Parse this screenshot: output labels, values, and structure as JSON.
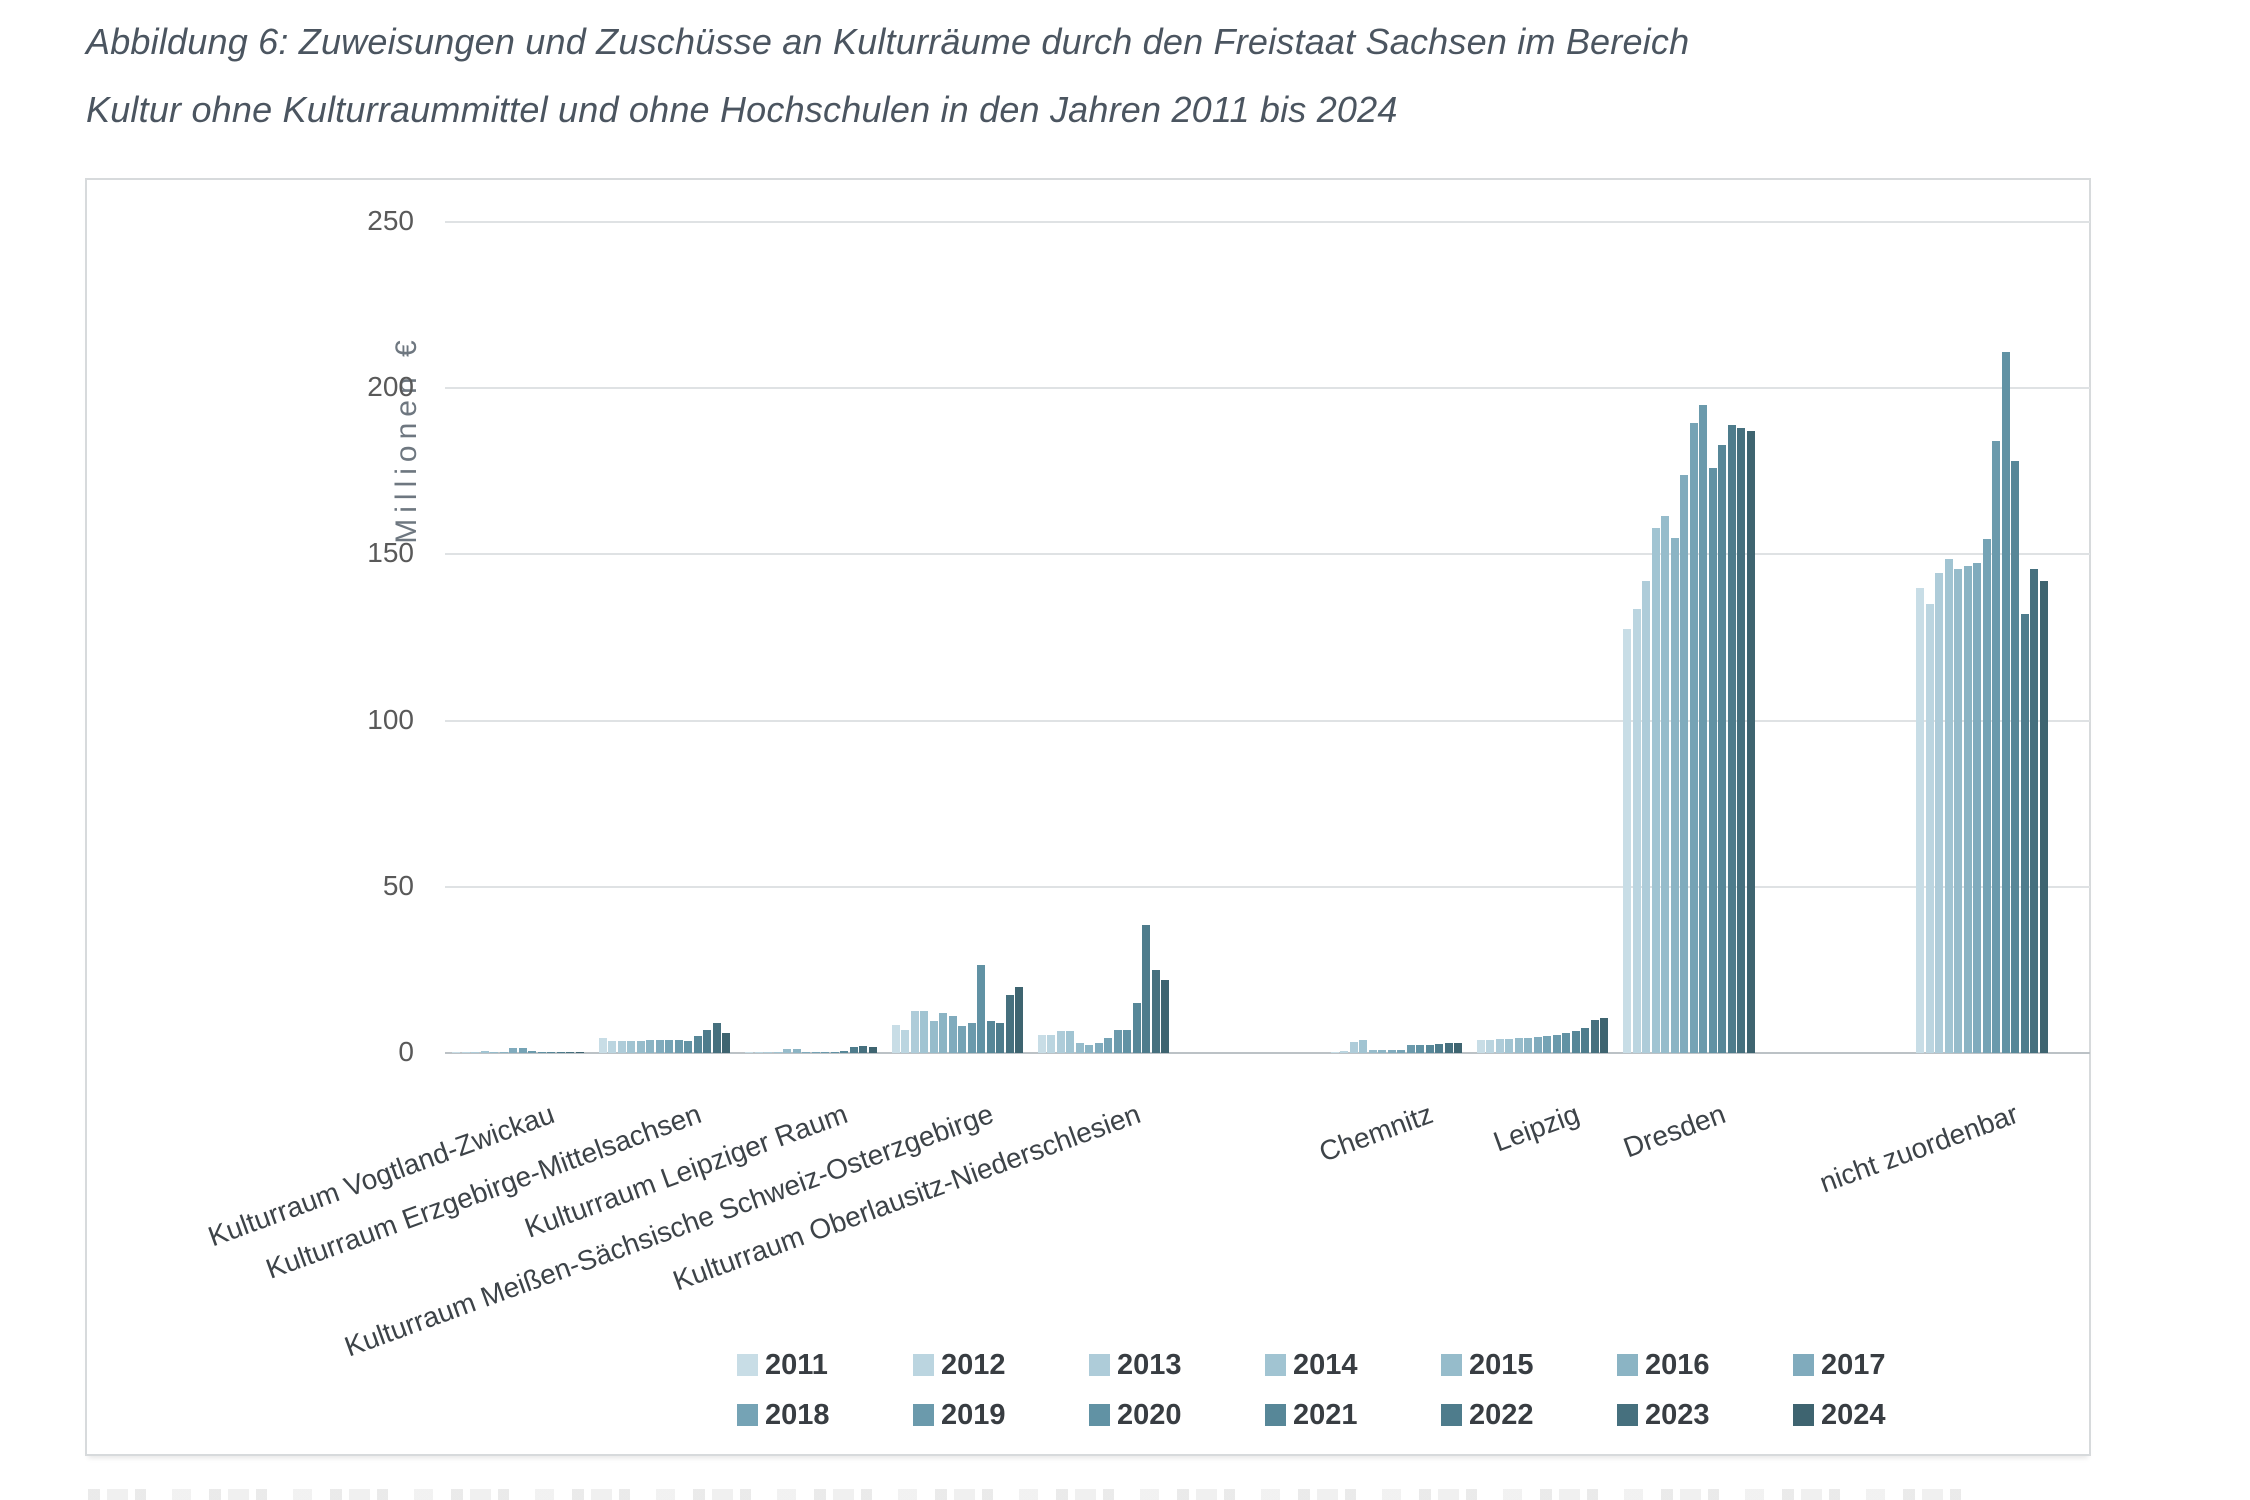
{
  "title": {
    "line1": "Abbildung 6: Zuweisungen und Zuschüsse an Kulturräume durch den Freistaat Sachsen im Bereich",
    "line2": "Kultur ohne Kulturraummittel und ohne Hochschulen in den Jahren 2011 bis 2024"
  },
  "y_axis": {
    "label": "Millionen €",
    "ticks": [
      250,
      200,
      150,
      100,
      50,
      0
    ]
  },
  "chart_data": {
    "type": "bar",
    "title": "Zuweisungen und Zuschüsse an Kulturräume durch den Freistaat Sachsen im Bereich Kultur ohne Kulturraummittel und ohne Hochschulen in den Jahren 2011 bis 2024",
    "xlabel": "",
    "ylabel": "Millionen €",
    "ylim": [
      0,
      250
    ],
    "gridlines": [
      0,
      50,
      100,
      150,
      200,
      250
    ],
    "grid": true,
    "legend_position": "bottom",
    "categories": [
      "Kulturraum Vogtland-Zwickau",
      "Kulturraum Erzgebirge-Mittelsachsen",
      "Kulturraum Leipziger Raum",
      "Kulturraum Meißen-Sächsische Schweiz-Osterzgebirge",
      "Kulturraum Oberlausitz-Niederschlesien",
      "Chemnitz",
      "Leipzig",
      "Dresden",
      "nicht zuordenbar"
    ],
    "slot_map": [
      0,
      1,
      2,
      3,
      4,
      null,
      5,
      6,
      7,
      null,
      8
    ],
    "series": [
      {
        "name": "2011",
        "color": "#c8dde6",
        "values": [
          0.2,
          4.5,
          0.3,
          8.5,
          5.5,
          0.2,
          3.9,
          127.5,
          140.0
        ]
      },
      {
        "name": "2012",
        "color": "#bbd5e0",
        "values": [
          0.2,
          3.5,
          0.4,
          7.0,
          5.5,
          0.5,
          3.9,
          133.5,
          135.0
        ]
      },
      {
        "name": "2013",
        "color": "#aeccd9",
        "values": [
          0.3,
          3.5,
          0.3,
          12.5,
          6.5,
          3.2,
          4.2,
          142.0,
          144.5
        ]
      },
      {
        "name": "2014",
        "color": "#a1c4d2",
        "values": [
          0.5,
          3.5,
          0.3,
          12.5,
          6.5,
          4.0,
          4.2,
          158.0,
          148.5
        ]
      },
      {
        "name": "2015",
        "color": "#96bccb",
        "values": [
          0.3,
          3.5,
          1.2,
          9.5,
          3.0,
          0.9,
          4.4,
          161.5,
          145.5
        ]
      },
      {
        "name": "2016",
        "color": "#8bb4c4",
        "values": [
          0.4,
          4.0,
          1.3,
          12.0,
          2.5,
          0.9,
          4.4,
          155.0,
          146.5
        ]
      },
      {
        "name": "2017",
        "color": "#80abbd",
        "values": [
          1.5,
          4.0,
          0.4,
          11.0,
          3.0,
          0.9,
          4.7,
          174.0,
          147.5
        ]
      },
      {
        "name": "2018",
        "color": "#75a3b5",
        "values": [
          1.6,
          4.0,
          0.3,
          8.0,
          4.5,
          0.9,
          5.0,
          189.5,
          154.5
        ]
      },
      {
        "name": "2019",
        "color": "#6b9aac",
        "values": [
          0.6,
          4.0,
          0.3,
          9.0,
          7.0,
          2.3,
          5.5,
          195.0,
          184.0
        ]
      },
      {
        "name": "2020",
        "color": "#6192a4",
        "values": [
          0.3,
          3.5,
          0.3,
          26.5,
          7.0,
          2.4,
          6.0,
          176.0,
          211.0
        ]
      },
      {
        "name": "2021",
        "color": "#578798",
        "values": [
          0.3,
          5.0,
          0.5,
          9.5,
          15.0,
          2.4,
          6.5,
          183.0,
          178.0
        ]
      },
      {
        "name": "2022",
        "color": "#4e7c8c",
        "values": [
          0.3,
          7.0,
          1.8,
          9.0,
          38.5,
          2.8,
          7.5,
          189.0,
          132.0
        ]
      },
      {
        "name": "2023",
        "color": "#46707e",
        "values": [
          0.4,
          9.0,
          2.0,
          17.5,
          25.0,
          2.9,
          10.0,
          188.0,
          145.5
        ]
      },
      {
        "name": "2024",
        "color": "#3e6470",
        "values": [
          0.4,
          6.0,
          1.9,
          20.0,
          22.0,
          2.9,
          10.5,
          187.0,
          142.0
        ]
      }
    ]
  }
}
